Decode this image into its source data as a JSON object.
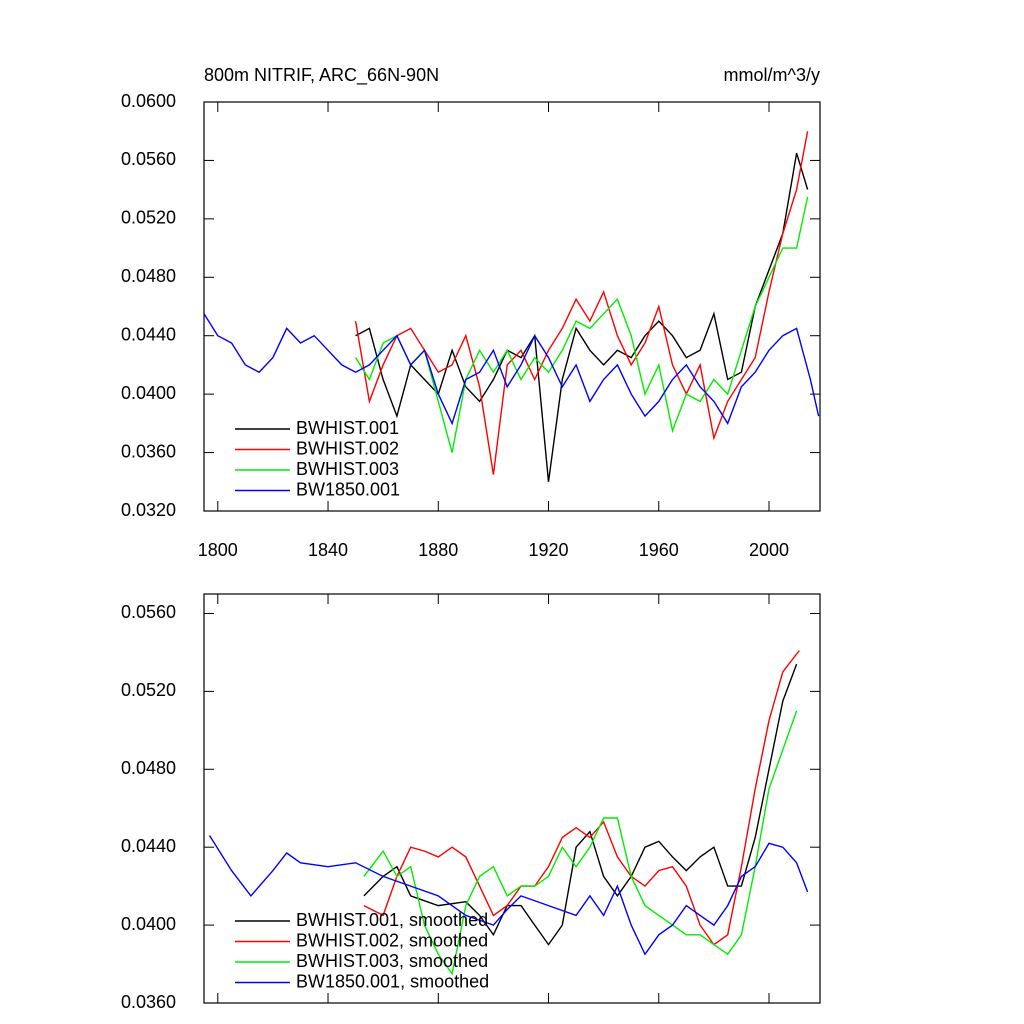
{
  "chart_data": [
    {
      "type": "line",
      "title": "800m NITRIF, ARC_66N-90N",
      "units": "mmol/m^3/y",
      "xlim": [
        1795,
        2018.5
      ],
      "xticks": [
        1800,
        1840,
        1880,
        1920,
        1960,
        2000
      ],
      "ylim": [
        0.032,
        0.06
      ],
      "yticks": [
        {
          "value": 0.032,
          "label": "0.0320"
        },
        {
          "value": 0.036,
          "label": "0.0360"
        },
        {
          "value": 0.04,
          "label": "0.0400"
        },
        {
          "value": 0.044,
          "label": "0.0440"
        },
        {
          "value": 0.048,
          "label": "0.0480"
        },
        {
          "value": 0.052,
          "label": "0.0520"
        },
        {
          "value": 0.056,
          "label": "0.0560"
        },
        {
          "value": 0.06,
          "label": "0.0600"
        }
      ],
      "legend": "lower left",
      "series": [
        {
          "name": "BWHIST.001",
          "color": "#000000",
          "x": [
            1850,
            1855,
            1860,
            1865,
            1870,
            1875,
            1880,
            1885,
            1890,
            1895,
            1900,
            1905,
            1910,
            1915,
            1920,
            1925,
            1930,
            1935,
            1940,
            1945,
            1950,
            1955,
            1960,
            1965,
            1970,
            1975,
            1980,
            1985,
            1990,
            1995,
            2000,
            2005,
            2010,
            2014
          ],
          "values": [
            0.044,
            0.0445,
            0.041,
            0.0385,
            0.042,
            0.041,
            0.04,
            0.043,
            0.0405,
            0.0395,
            0.041,
            0.043,
            0.0425,
            0.044,
            0.034,
            0.041,
            0.0445,
            0.043,
            0.042,
            0.043,
            0.0425,
            0.044,
            0.045,
            0.044,
            0.0425,
            0.043,
            0.0455,
            0.041,
            0.0415,
            0.046,
            0.0485,
            0.051,
            0.0565,
            0.054
          ]
        },
        {
          "name": "BWHIST.002",
          "color": "#ff0000",
          "x": [
            1850,
            1855,
            1860,
            1865,
            1870,
            1875,
            1880,
            1885,
            1890,
            1895,
            1900,
            1905,
            1910,
            1915,
            1920,
            1925,
            1930,
            1935,
            1940,
            1945,
            1950,
            1955,
            1960,
            1965,
            1970,
            1975,
            1980,
            1985,
            1990,
            1995,
            2000,
            2005,
            2010,
            2014
          ],
          "values": [
            0.045,
            0.0395,
            0.042,
            0.044,
            0.0445,
            0.043,
            0.0415,
            0.042,
            0.044,
            0.0405,
            0.0345,
            0.042,
            0.043,
            0.041,
            0.043,
            0.0445,
            0.0465,
            0.045,
            0.047,
            0.044,
            0.042,
            0.0435,
            0.046,
            0.042,
            0.04,
            0.042,
            0.037,
            0.0395,
            0.041,
            0.0425,
            0.047,
            0.051,
            0.054,
            0.058
          ]
        },
        {
          "name": "BWHIST.003",
          "color": "#00ee00",
          "x": [
            1850,
            1855,
            1860,
            1865,
            1870,
            1875,
            1880,
            1885,
            1890,
            1895,
            1900,
            1905,
            1910,
            1915,
            1920,
            1925,
            1930,
            1935,
            1940,
            1945,
            1950,
            1955,
            1960,
            1965,
            1970,
            1975,
            1980,
            1985,
            1990,
            1995,
            2000,
            2005,
            2010,
            2014
          ],
          "values": [
            0.0425,
            0.041,
            0.0435,
            0.044,
            0.042,
            0.043,
            0.0395,
            0.036,
            0.041,
            0.043,
            0.0415,
            0.043,
            0.041,
            0.0425,
            0.0415,
            0.043,
            0.045,
            0.0445,
            0.0455,
            0.0465,
            0.044,
            0.04,
            0.042,
            0.0375,
            0.04,
            0.0395,
            0.041,
            0.04,
            0.043,
            0.046,
            0.048,
            0.05,
            0.05,
            0.0535
          ]
        },
        {
          "name": "BW1850.001",
          "color": "#0000ff",
          "x": [
            1795,
            1800,
            1805,
            1810,
            1815,
            1820,
            1825,
            1830,
            1835,
            1840,
            1845,
            1850,
            1855,
            1860,
            1865,
            1870,
            1875,
            1880,
            1885,
            1890,
            1895,
            1900,
            1905,
            1910,
            1915,
            1920,
            1925,
            1930,
            1935,
            1940,
            1945,
            1950,
            1955,
            1960,
            1965,
            1970,
            1975,
            1980,
            1985,
            1990,
            1995,
            2000,
            2005,
            2010,
            2015,
            2018
          ],
          "values": [
            0.0455,
            0.044,
            0.0435,
            0.042,
            0.0415,
            0.0425,
            0.0445,
            0.0435,
            0.044,
            0.043,
            0.042,
            0.0415,
            0.042,
            0.043,
            0.044,
            0.042,
            0.043,
            0.04,
            0.038,
            0.041,
            0.0415,
            0.043,
            0.0405,
            0.042,
            0.044,
            0.0425,
            0.0405,
            0.042,
            0.0395,
            0.041,
            0.042,
            0.04,
            0.0385,
            0.0395,
            0.041,
            0.042,
            0.0405,
            0.0395,
            0.038,
            0.0405,
            0.0415,
            0.043,
            0.044,
            0.0445,
            0.041,
            0.0385
          ]
        }
      ]
    },
    {
      "type": "line",
      "xlim": [
        1795,
        2018.5
      ],
      "xticks": [
        1800,
        1840,
        1880,
        1920,
        1960,
        2000
      ],
      "ylim": [
        0.036,
        0.057
      ],
      "yticks": [
        {
          "value": 0.036,
          "label": "0.0360"
        },
        {
          "value": 0.04,
          "label": "0.0400"
        },
        {
          "value": 0.044,
          "label": "0.0440"
        },
        {
          "value": 0.048,
          "label": "0.0480"
        },
        {
          "value": 0.052,
          "label": "0.0520"
        },
        {
          "value": 0.056,
          "label": "0.0560"
        }
      ],
      "legend": "lower left",
      "series": [
        {
          "name": "BWHIST.001, smoothed",
          "color": "#000000",
          "x": [
            1853,
            1860,
            1865,
            1870,
            1880,
            1890,
            1895,
            1900,
            1905,
            1910,
            1915,
            1920,
            1925,
            1930,
            1935,
            1940,
            1945,
            1950,
            1955,
            1960,
            1965,
            1970,
            1975,
            1980,
            1985,
            1990,
            1995,
            2000,
            2005,
            2010
          ],
          "values": [
            0.0415,
            0.0425,
            0.043,
            0.0415,
            0.041,
            0.0412,
            0.0405,
            0.0395,
            0.041,
            0.041,
            0.04,
            0.039,
            0.04,
            0.044,
            0.0448,
            0.0425,
            0.0415,
            0.0425,
            0.044,
            0.0443,
            0.0435,
            0.0428,
            0.0435,
            0.044,
            0.042,
            0.042,
            0.0445,
            0.048,
            0.0515,
            0.0534
          ]
        },
        {
          "name": "BWHIST.002, smoothed",
          "color": "#ff0000",
          "x": [
            1853,
            1860,
            1865,
            1870,
            1875,
            1880,
            1885,
            1890,
            1895,
            1900,
            1905,
            1910,
            1915,
            1920,
            1925,
            1930,
            1935,
            1940,
            1945,
            1950,
            1955,
            1960,
            1965,
            1970,
            1975,
            1980,
            1985,
            1990,
            1995,
            2000,
            2005,
            2011
          ],
          "values": [
            0.041,
            0.0405,
            0.0425,
            0.044,
            0.0438,
            0.0435,
            0.044,
            0.0435,
            0.042,
            0.0405,
            0.041,
            0.042,
            0.042,
            0.043,
            0.0445,
            0.045,
            0.0445,
            0.0453,
            0.0435,
            0.0425,
            0.042,
            0.0428,
            0.043,
            0.042,
            0.04,
            0.039,
            0.0395,
            0.043,
            0.047,
            0.0505,
            0.053,
            0.0541
          ]
        },
        {
          "name": "BWHIST.003, smoothed",
          "color": "#00ee00",
          "x": [
            1853,
            1860,
            1865,
            1870,
            1875,
            1880,
            1885,
            1890,
            1895,
            1900,
            1905,
            1910,
            1915,
            1920,
            1925,
            1930,
            1935,
            1940,
            1945,
            1950,
            1955,
            1960,
            1965,
            1970,
            1975,
            1980,
            1985,
            1990,
            1995,
            2000,
            2005,
            2010
          ],
          "values": [
            0.0425,
            0.0438,
            0.0425,
            0.043,
            0.04,
            0.0385,
            0.0375,
            0.041,
            0.0425,
            0.043,
            0.0415,
            0.042,
            0.042,
            0.0425,
            0.044,
            0.043,
            0.044,
            0.0455,
            0.0455,
            0.0425,
            0.041,
            0.0405,
            0.04,
            0.0395,
            0.0395,
            0.039,
            0.0385,
            0.0395,
            0.043,
            0.047,
            0.049,
            0.051
          ]
        },
        {
          "name": "BW1850.001, smoothed",
          "color": "#0000ff",
          "x": [
            1797,
            1805,
            1812,
            1820,
            1825,
            1830,
            1840,
            1850,
            1860,
            1870,
            1880,
            1890,
            1900,
            1905,
            1910,
            1920,
            1930,
            1935,
            1940,
            1945,
            1950,
            1955,
            1960,
            1965,
            1970,
            1975,
            1980,
            1985,
            1990,
            1995,
            2000,
            2005,
            2010,
            2014
          ],
          "values": [
            0.0446,
            0.0428,
            0.0415,
            0.0428,
            0.0437,
            0.0432,
            0.043,
            0.0432,
            0.0425,
            0.042,
            0.0415,
            0.0405,
            0.04,
            0.0408,
            0.0415,
            0.041,
            0.0405,
            0.0415,
            0.0405,
            0.042,
            0.04,
            0.0385,
            0.0395,
            0.04,
            0.041,
            0.0405,
            0.04,
            0.041,
            0.0425,
            0.043,
            0.0442,
            0.044,
            0.0432,
            0.0417
          ]
        }
      ]
    }
  ]
}
